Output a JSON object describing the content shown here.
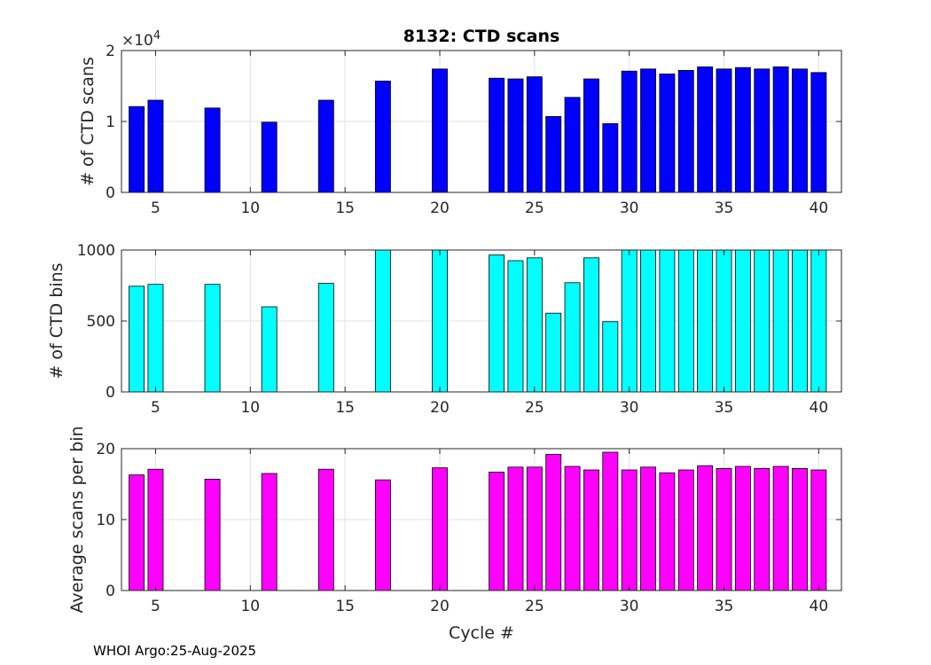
{
  "title": "8132: CTD scans",
  "footer": "WHOI Argo:25-Aug-2025",
  "colors": {
    "panel1": "#0000ff",
    "panel2": "#00ffff",
    "panel3": "#ff00ff",
    "grid": "#e1e1e1",
    "axis": "#262626"
  },
  "chart_data": [
    {
      "type": "bar",
      "title": "8132: CTD scans",
      "xlabel": "",
      "ylabel": "# of CTD scans",
      "y_exponent_label": "×10",
      "y_exponent": "4",
      "xlim": [
        3.2,
        41.2
      ],
      "ylim": [
        0,
        20000
      ],
      "xticks": [
        5,
        10,
        15,
        20,
        25,
        30,
        35,
        40
      ],
      "yticks": [
        0,
        10000,
        20000
      ],
      "ytick_labels": [
        "0",
        "1",
        "2"
      ],
      "x": [
        4,
        5,
        8,
        11,
        14,
        17,
        20,
        23,
        24,
        25,
        26,
        27,
        28,
        29,
        30,
        31,
        32,
        33,
        34,
        35,
        36,
        37,
        38,
        39,
        40
      ],
      "values": [
        12100,
        13000,
        11900,
        9900,
        13000,
        15700,
        17400,
        16100,
        16000,
        16300,
        10700,
        13400,
        16000,
        9700,
        17100,
        17400,
        16700,
        17200,
        17700,
        17400,
        17600,
        17400,
        17700,
        17400,
        16900
      ]
    },
    {
      "type": "bar",
      "title": "",
      "xlabel": "",
      "ylabel": "# of CTD bins",
      "xlim": [
        3.2,
        41.2
      ],
      "ylim": [
        0,
        1000
      ],
      "xticks": [
        5,
        10,
        15,
        20,
        25,
        30,
        35,
        40
      ],
      "yticks": [
        0,
        500,
        1000
      ],
      "ytick_labels": [
        "0",
        "500",
        "1000"
      ],
      "x": [
        4,
        5,
        8,
        11,
        14,
        17,
        20,
        23,
        24,
        25,
        26,
        27,
        28,
        29,
        30,
        31,
        32,
        33,
        34,
        35,
        36,
        37,
        38,
        39,
        40
      ],
      "values": [
        745,
        758,
        758,
        600,
        765,
        1010,
        1010,
        965,
        925,
        945,
        555,
        770,
        945,
        495,
        1010,
        1010,
        1010,
        1010,
        1010,
        1010,
        1010,
        1010,
        1010,
        1010,
        1010
      ]
    },
    {
      "type": "bar",
      "title": "",
      "xlabel": "Cycle #",
      "ylabel": "Average scans per bin",
      "xlim": [
        3.2,
        41.2
      ],
      "ylim": [
        0,
        20
      ],
      "xticks": [
        5,
        10,
        15,
        20,
        25,
        30,
        35,
        40
      ],
      "yticks": [
        0,
        10,
        20
      ],
      "ytick_labels": [
        "0",
        "10",
        "20"
      ],
      "x": [
        4,
        5,
        8,
        11,
        14,
        17,
        20,
        23,
        24,
        25,
        26,
        27,
        28,
        29,
        30,
        31,
        32,
        33,
        34,
        35,
        36,
        37,
        38,
        39,
        40
      ],
      "values": [
        16.3,
        17.1,
        15.7,
        16.5,
        17.1,
        15.6,
        17.3,
        16.7,
        17.4,
        17.4,
        19.2,
        17.5,
        17.0,
        19.5,
        17.0,
        17.4,
        16.6,
        17.0,
        17.6,
        17.2,
        17.5,
        17.2,
        17.5,
        17.2,
        17.0
      ]
    }
  ]
}
